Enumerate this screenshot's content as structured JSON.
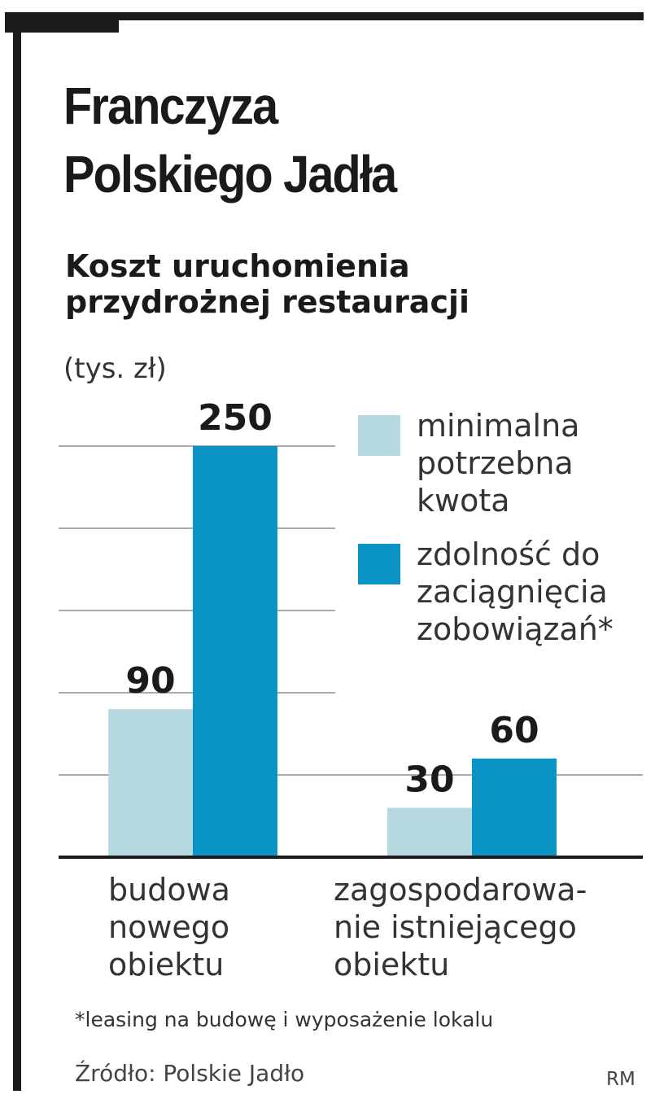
{
  "title_line1": "Franczyza",
  "title_line2": "Polskiego Jadła",
  "subtitle_line1": "Koszt uruchomienia",
  "subtitle_line2": "przydrożnej restauracji",
  "unit": "(tys. zł)",
  "footnote": "*leasing na budowę i wyposażenie lokalu",
  "source": "Źródło: Polskie Jadło",
  "author": "RM",
  "colors": {
    "light": "#b5d8e1",
    "dark": "#0a93c5",
    "grid": "#8f8f8f",
    "axis": "#1a1a1a"
  },
  "chart_data": {
    "type": "bar",
    "categories": [
      "budowa\nnowego\nobiektu",
      "zagospodarowa-\nnie istniejącego\nobiektu"
    ],
    "series": [
      {
        "name": "minimalna\npotrzebna\nkwota",
        "values": [
          90,
          30
        ]
      },
      {
        "name": "zdolność do\nzaciągnięcia\nzobowiązań*",
        "values": [
          250,
          60
        ]
      }
    ],
    "ylim": [
      0,
      250
    ],
    "grid": true,
    "legend": "right"
  }
}
